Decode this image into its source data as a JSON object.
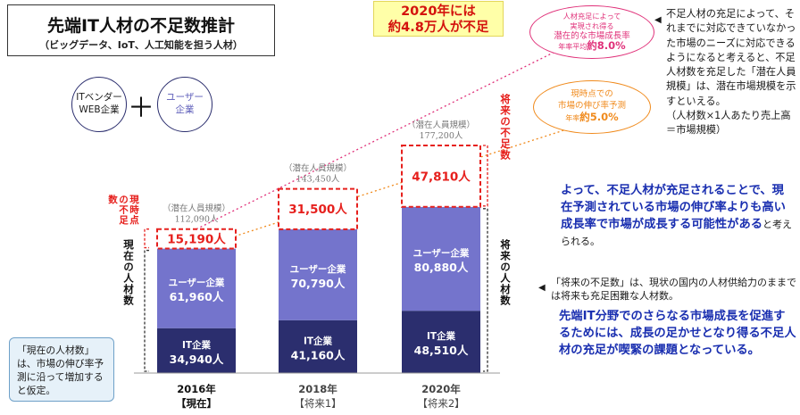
{
  "title": {
    "main": "先端IT人材の不足数推計",
    "sub": "（ビッグデータ、IoT、人工知能を担う人材）"
  },
  "legend": {
    "vendor": "ITベンダー\nWEB企業",
    "plus": "＋",
    "user": "ユーザー\n企業"
  },
  "callout_2020": {
    "line1": "2020年には",
    "line2": "約4.8万人が不足"
  },
  "cagr_potential": {
    "line1": "人材充足によって",
    "line2": "実現され得る",
    "line3": "潜在的な市場成長率",
    "prefix": "年率平均",
    "value": "約8.0%",
    "color": "#e0327a"
  },
  "cagr_current": {
    "line1": "現時点での",
    "line2": "市場の伸び率予測",
    "prefix": "年率",
    "value": "約5.0%",
    "color": "#f08a1c"
  },
  "notes": {
    "right": "不足人材の充足によって、それまでに対応できていなかった市場のニーズに対応できるようになると考えると、不足人材数を充足した「潜在人員規模」は、潜在市場規模を示すといえる。\n（人材数×1人あたり売上高＝市場規模）",
    "conclusion_bold": "よって、不足人材が充足されることで、現在予測されている市場の伸び率よりも高い成長率で市場が成長する可能性がある",
    "conclusion_tail": "と考えられる。",
    "future_label": "「将来の不足数」は、現状の国内の人材供給力のままでは将来も充足困難な人材数。",
    "future_bold": "先端IT分野でのさらなる市場成長を促進するためには、成長の足かせとなり得る不足人材の充足が喫緊の課題となっている。",
    "bottom_left": "「現在の人材数」は、市場の伸び率予測に沿って増加すると仮定。"
  },
  "side_labels": {
    "current_shortage": "現時点の不足数",
    "current_workforce": "現在の人材数",
    "future_shortage": "将来の不足数",
    "future_workforce": "将来の人材数"
  },
  "colors": {
    "it": "#2b2e6e",
    "user": "#7474cc",
    "shortage": "#e6201d",
    "pink_line": "#e0327a",
    "orange_line": "#f08a1c",
    "blue_text": "#1a2fb0"
  },
  "chart_data": {
    "type": "bar",
    "stacked": true,
    "categories": [
      "2016年\n【現在】",
      "2018年\n【将来1】",
      "2020年\n【将来2】"
    ],
    "category_year": [
      "2016年",
      "2018年",
      "2020年"
    ],
    "category_tag": [
      "【現在】",
      "【将来1】",
      "【将来2】"
    ],
    "series": [
      {
        "name": "IT企業",
        "values": [
          34940,
          41160,
          48510
        ],
        "labels": [
          "34,940人",
          "41,160人",
          "48,510人"
        ]
      },
      {
        "name": "ユーザー企業",
        "values": [
          61960,
          70790,
          80880
        ],
        "labels": [
          "61,960人",
          "70,790人",
          "80,880人"
        ]
      },
      {
        "name": "不足数",
        "values": [
          15190,
          31500,
          47810
        ],
        "labels": [
          "15,190人",
          "31,500人",
          "47,810人"
        ]
      }
    ],
    "totals": {
      "caption": "（潜在人員規模）",
      "values": [
        112090,
        143450,
        177200
      ],
      "labels": [
        "112,090人",
        "143,450人",
        "177,200人"
      ]
    },
    "ylim": [
      0,
      180000
    ]
  }
}
